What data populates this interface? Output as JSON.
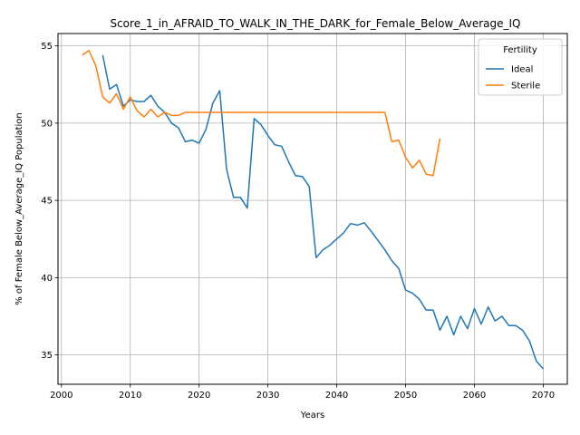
{
  "chart_data": {
    "type": "line",
    "title": "Score_1_in_AFRAID_TO_WALK_IN_THE_DARK_for_Female_Below_Average_IQ",
    "xlabel": "Years",
    "ylabel": "% of Female Below_Average_IQ Population",
    "xlim": [
      1999.5,
      2073.5
    ],
    "ylim": [
      33.1,
      55.8
    ],
    "xticks": [
      2000,
      2010,
      2020,
      2030,
      2040,
      2050,
      2060,
      2070
    ],
    "yticks": [
      35,
      40,
      45,
      50,
      55
    ],
    "grid": true,
    "legend": {
      "title": "Fertility",
      "placement": "top-right"
    },
    "series": [
      {
        "name": "Ideal",
        "color": "#1f77b4",
        "x": [
          2006,
          2007,
          2008,
          2009,
          2010,
          2011,
          2012,
          2013,
          2014,
          2015,
          2016,
          2017,
          2018,
          2019,
          2020,
          2021,
          2022,
          2023,
          2024,
          2025,
          2026,
          2027,
          2028,
          2029,
          2030,
          2031,
          2032,
          2033,
          2034,
          2035,
          2036,
          2037,
          2038,
          2039,
          2040,
          2041,
          2042,
          2043,
          2044,
          2045,
          2046,
          2047,
          2048,
          2049,
          2050,
          2051,
          2052,
          2053,
          2054,
          2055,
          2056,
          2057,
          2058,
          2059,
          2060,
          2061,
          2062,
          2063,
          2064,
          2065,
          2066,
          2067,
          2068,
          2069,
          2070
        ],
        "values": [
          54.4,
          52.2,
          52.5,
          51.1,
          51.5,
          51.4,
          51.4,
          51.8,
          51.1,
          50.7,
          50.0,
          49.7,
          48.8,
          48.9,
          48.7,
          49.6,
          51.3,
          52.1,
          47.0,
          45.2,
          45.2,
          44.5,
          50.3,
          49.9,
          49.2,
          48.6,
          48.5,
          47.5,
          46.6,
          46.55,
          45.9,
          41.3,
          41.8,
          42.1,
          42.5,
          42.9,
          43.5,
          43.4,
          43.55,
          43.0,
          42.4,
          41.8,
          41.1,
          40.6,
          39.2,
          39.0,
          38.6,
          37.9,
          37.9,
          36.6,
          37.5,
          36.3,
          37.5,
          36.7,
          38.0,
          37.0,
          38.1,
          37.2,
          37.5,
          36.9,
          36.9,
          36.6,
          35.9,
          34.6,
          34.1
        ]
      },
      {
        "name": "Sterile",
        "color": "#ff7f0e",
        "x": [
          2003,
          2004,
          2005,
          2006,
          2007,
          2008,
          2009,
          2010,
          2011,
          2012,
          2013,
          2014,
          2015,
          2016,
          2017,
          2018,
          2019,
          2020,
          2021,
          2022,
          2023,
          2024,
          2025,
          2026,
          2027,
          2028,
          2029,
          2030,
          2031,
          2032,
          2033,
          2034,
          2035,
          2036,
          2037,
          2038,
          2039,
          2040,
          2041,
          2042,
          2043,
          2044,
          2045,
          2046,
          2047,
          2048,
          2049,
          2050,
          2051,
          2052,
          2053,
          2054,
          2055
        ],
        "values": [
          54.4,
          54.7,
          53.7,
          51.7,
          51.3,
          51.9,
          50.9,
          51.7,
          50.8,
          50.4,
          50.9,
          50.4,
          50.7,
          50.5,
          50.5,
          50.7,
          50.7,
          50.7,
          50.7,
          50.7,
          50.7,
          50.7,
          50.7,
          50.7,
          50.7,
          50.7,
          50.7,
          50.7,
          50.7,
          50.7,
          50.7,
          50.7,
          50.7,
          50.7,
          50.7,
          50.7,
          50.7,
          50.7,
          50.7,
          50.7,
          50.7,
          50.7,
          50.7,
          50.7,
          50.7,
          48.8,
          48.9,
          47.8,
          47.1,
          47.6,
          46.7,
          46.6,
          49.0
        ]
      }
    ]
  }
}
